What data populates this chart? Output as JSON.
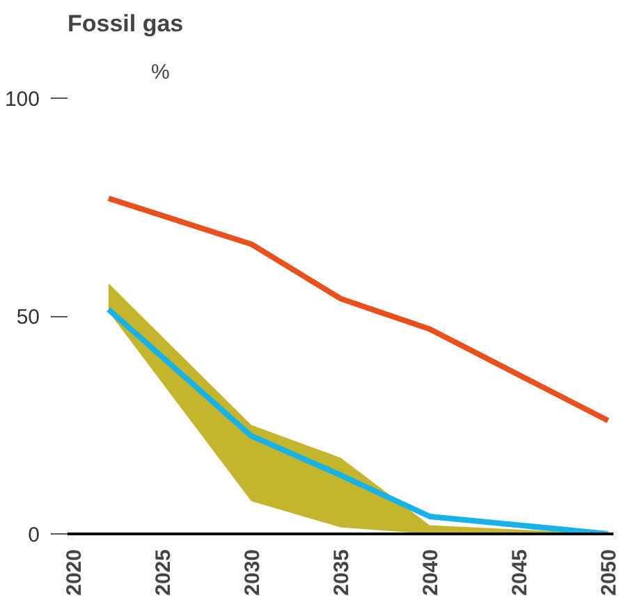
{
  "chart_data": {
    "type": "line",
    "title": "Fossil gas",
    "ylabel": "%",
    "xlim": [
      2019.7,
      2050.3
    ],
    "ylim": [
      0,
      100
    ],
    "xticks": [
      2020,
      2025,
      2030,
      2035,
      2040,
      2045,
      2050
    ],
    "yticks": [
      0,
      50,
      100
    ],
    "grid": false,
    "series": [
      {
        "color": "#e8501e",
        "x": [
          2022,
          2030,
          2035,
          2040,
          2050
        ],
        "values": [
          77,
          66.5,
          54,
          47,
          26
        ]
      },
      {
        "color": "#17b2e8",
        "colors": [
          "#c4b42e",
          "#c4b42e",
          "#c4b42e",
          "#c4b42e",
          "#c4b42e"
        ],
        "x": [
          2022,
          2030,
          2035,
          2040,
          2050
        ],
        "values": [
          51.5,
          22.5,
          13.5,
          4,
          0
        ],
        "lower": [
          51,
          7.5,
          1.5,
          0,
          0
        ],
        "upper": [
          57.5,
          25,
          17.5,
          2,
          0
        ]
      }
    ]
  }
}
